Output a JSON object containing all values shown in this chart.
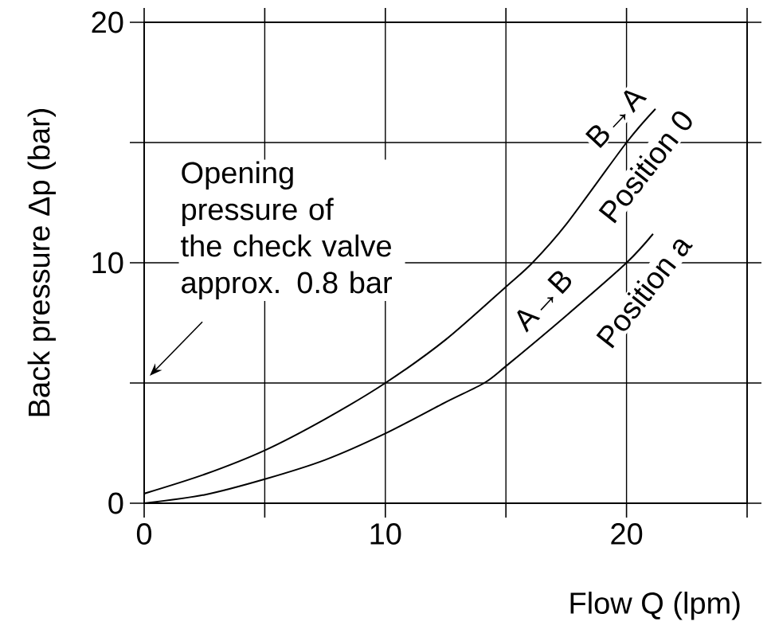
{
  "chart_data": {
    "type": "line",
    "xlabel": "Flow Q (lpm)",
    "ylabel": "Back pressure Δp (bar)",
    "xlim": [
      0,
      25
    ],
    "ylim": [
      0,
      20
    ],
    "xticks": [
      0,
      {
        "value": 5,
        "label": null
      },
      10,
      {
        "value": 15,
        "label": null
      },
      20,
      {
        "value": 25,
        "label": null
      }
    ],
    "yticks": [
      0,
      {
        "value": 5,
        "label": null
      },
      10,
      {
        "value": 15,
        "label": null
      },
      20
    ],
    "grid": true,
    "marker": "none",
    "line_style": "solid",
    "series": [
      {
        "name": "Position 0",
        "color": "#000000",
        "x": [
          0,
          2.5,
          5,
          7.5,
          10,
          12.5,
          15,
          16.1,
          17.5,
          20,
          21.2
        ],
        "values": [
          0.4,
          1.2,
          2.2,
          3.5,
          5,
          6.8,
          9,
          10,
          11.6,
          15,
          16.4
        ]
      },
      {
        "name": "Position a",
        "color": "#000000",
        "x": [
          0,
          2.5,
          5,
          7.5,
          10,
          12.5,
          14.1,
          15,
          17.5,
          20,
          21.1
        ],
        "values": [
          0,
          0.35,
          1.0,
          1.8,
          2.9,
          4.2,
          5,
          5.7,
          7.8,
          10,
          11.2
        ]
      }
    ],
    "annotations": [
      {
        "text": "B→A",
        "x": 20,
        "y": 15
      },
      {
        "text": "A→B",
        "x": 17,
        "y": 7.4
      },
      "Opening pressure of the check valve approx. 0.8 bar"
    ]
  }
}
